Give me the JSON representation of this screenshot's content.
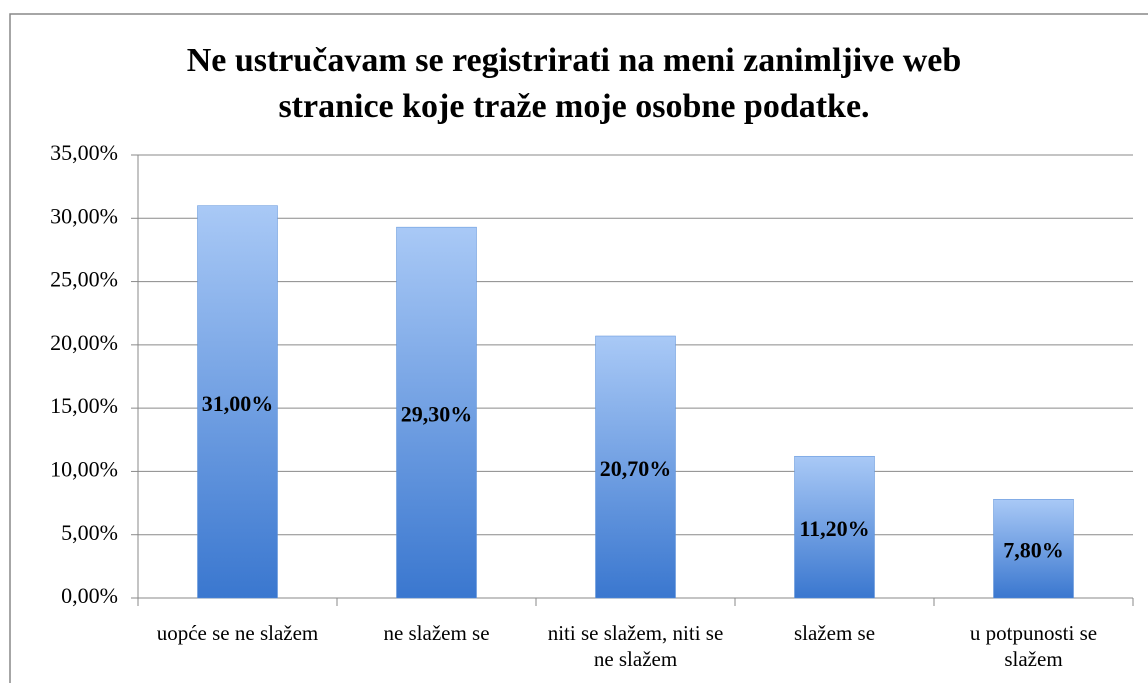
{
  "chart_data": {
    "type": "bar",
    "title": "Ne ustručavam se registrirati na meni zanimljive web stranice koje traže moje osobne podatke.",
    "categories": [
      "uopće se ne slažem",
      "ne slažem se",
      "niti se slažem, niti se ne slažem",
      "slažem se",
      "u potpunosti se slažem"
    ],
    "values": [
      31,
      29.3,
      20.7,
      11.2,
      7.8
    ],
    "value_labels": [
      "31,00%",
      "29,30%",
      "20,70%",
      "11,20%",
      "7,80%"
    ],
    "color": [
      "#a9c9f6",
      "#3a77cf"
    ],
    "ylim": [
      0,
      35
    ],
    "yticks": [
      {
        "value": 0,
        "label": "0,00%"
      },
      {
        "value": 5,
        "label": "5,00%"
      },
      {
        "value": 10,
        "label": "10,00%"
      },
      {
        "value": 15,
        "label": "15,00%"
      },
      {
        "value": 20,
        "label": "20,00%"
      },
      {
        "value": 25,
        "label": "25,00%"
      },
      {
        "value": 30,
        "label": "30,00%"
      },
      {
        "value": 35,
        "label": "35,00%"
      }
    ],
    "grid": true
  }
}
